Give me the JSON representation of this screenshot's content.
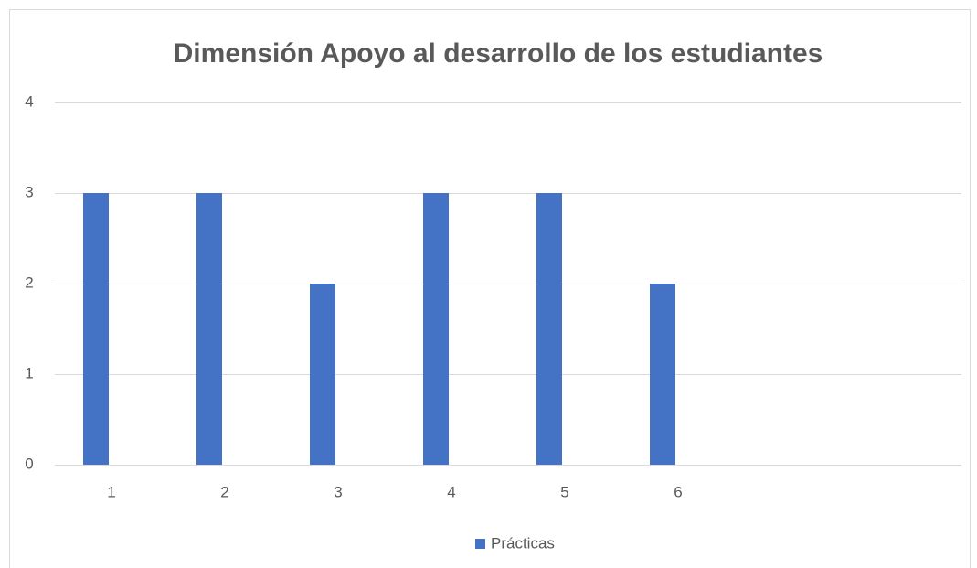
{
  "chart_data": {
    "type": "bar",
    "title": "Dimensión Apoyo al desarrollo de los estudiantes",
    "categories": [
      "1",
      "2",
      "3",
      "4",
      "5",
      "6",
      null,
      null
    ],
    "series": [
      {
        "name": "Prácticas",
        "color": "#4472c4",
        "values": [
          3,
          3,
          2,
          3,
          3,
          2,
          null,
          null
        ]
      }
    ],
    "ylim": [
      0,
      4
    ],
    "yticks": [
      0,
      1,
      2,
      3,
      4
    ],
    "grid": true,
    "legend": "bottom"
  }
}
